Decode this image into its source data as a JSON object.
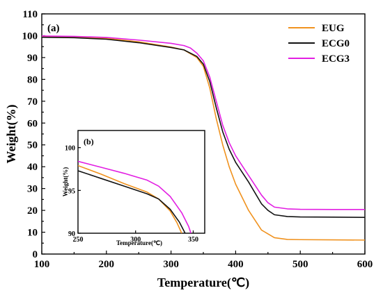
{
  "chart_data": [
    {
      "type": "line",
      "panel_label": "(a)",
      "xlabel": "Temperature(℃)",
      "ylabel": "Weight(%)",
      "xlim": [
        100,
        600
      ],
      "ylim": [
        0,
        110
      ],
      "xticks": [
        "100",
        "200",
        "300",
        "400",
        "500",
        "600"
      ],
      "yticks": [
        "0",
        "10",
        "20",
        "30",
        "40",
        "50",
        "60",
        "70",
        "80",
        "90",
        "100",
        "110"
      ],
      "legend_position": "top-right",
      "series": [
        {
          "name": "EUG",
          "color": "#f0921e",
          "points": [
            [
              100,
              99.6
            ],
            [
              150,
              99.4
            ],
            [
              200,
              98.8
            ],
            [
              250,
              97.2
            ],
            [
              300,
              94.8
            ],
            [
              320,
              93.5
            ],
            [
              340,
              90
            ],
            [
              350,
              86
            ],
            [
              360,
              76
            ],
            [
              370,
              62
            ],
            [
              380,
              50
            ],
            [
              390,
              40
            ],
            [
              400,
              32
            ],
            [
              420,
              20
            ],
            [
              440,
              11
            ],
            [
              460,
              7.5
            ],
            [
              480,
              6.7
            ],
            [
              500,
              6.6
            ],
            [
              550,
              6.5
            ],
            [
              600,
              6.4
            ]
          ]
        },
        {
          "name": "ECG0",
          "color": "#111111",
          "points": [
            [
              100,
              99.3
            ],
            [
              150,
              99.1
            ],
            [
              200,
              98.4
            ],
            [
              250,
              96.8
            ],
            [
              300,
              94.6
            ],
            [
              320,
              93.5
            ],
            [
              340,
              90.5
            ],
            [
              350,
              87
            ],
            [
              360,
              79
            ],
            [
              370,
              67
            ],
            [
              380,
              56
            ],
            [
              390,
              48
            ],
            [
              400,
              42
            ],
            [
              420,
              33
            ],
            [
              440,
              23
            ],
            [
              450,
              20
            ],
            [
              460,
              18
            ],
            [
              480,
              17.2
            ],
            [
              500,
              17
            ],
            [
              550,
              16.9
            ],
            [
              600,
              16.8
            ]
          ]
        },
        {
          "name": "ECG3",
          "color": "#e21ee2",
          "points": [
            [
              100,
              99.9
            ],
            [
              150,
              99.7
            ],
            [
              200,
              99.2
            ],
            [
              250,
              98
            ],
            [
              300,
              96.5
            ],
            [
              320,
              95.5
            ],
            [
              330,
              94.4
            ],
            [
              340,
              92
            ],
            [
              350,
              88.5
            ],
            [
              360,
              81
            ],
            [
              370,
              70
            ],
            [
              380,
              59
            ],
            [
              390,
              51
            ],
            [
              400,
              45
            ],
            [
              420,
              36
            ],
            [
              440,
              27
            ],
            [
              450,
              23.5
            ],
            [
              460,
              21.5
            ],
            [
              480,
              20.7
            ],
            [
              500,
              20.5
            ],
            [
              550,
              20.4
            ],
            [
              600,
              20.4
            ]
          ]
        }
      ]
    },
    {
      "type": "line",
      "panel_label": "(b)",
      "xlabel": "Temperature(℃)",
      "ylabel": "Weight(%)",
      "xlim": [
        250,
        360
      ],
      "ylim": [
        90,
        102
      ],
      "xticks": [
        "250",
        "300",
        "350"
      ],
      "yticks": [
        "90",
        "95",
        "100"
      ],
      "series": [
        {
          "name": "EUG",
          "color": "#f0921e",
          "points": [
            [
              250,
              97.9
            ],
            [
              270,
              96.9
            ],
            [
              290,
              95.8
            ],
            [
              310,
              94.8
            ],
            [
              320,
              94.0
            ],
            [
              330,
              92.6
            ],
            [
              336,
              91.2
            ],
            [
              340,
              90.0
            ]
          ]
        },
        {
          "name": "ECG0",
          "color": "#111111",
          "points": [
            [
              250,
              97.3
            ],
            [
              270,
              96.4
            ],
            [
              290,
              95.5
            ],
            [
              310,
              94.6
            ],
            [
              320,
              94.0
            ],
            [
              330,
              92.8
            ],
            [
              338,
              91.3
            ],
            [
              343,
              90.0
            ]
          ]
        },
        {
          "name": "ECG3",
          "color": "#e21ee2",
          "points": [
            [
              250,
              98.4
            ],
            [
              270,
              97.7
            ],
            [
              290,
              97.0
            ],
            [
              310,
              96.2
            ],
            [
              320,
              95.5
            ],
            [
              330,
              94.3
            ],
            [
              340,
              92.4
            ],
            [
              346,
              90.8
            ],
            [
              348,
              90.0
            ]
          ]
        }
      ]
    }
  ]
}
